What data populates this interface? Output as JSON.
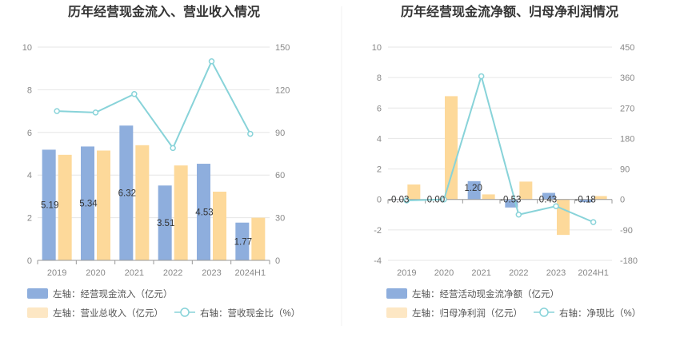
{
  "chart_data": [
    {
      "type": "bar",
      "title": "历年经营现金流入、营业收入情况",
      "categories": [
        "2019",
        "2020",
        "2021",
        "2022",
        "2023",
        "2024H1"
      ],
      "left_axis": {
        "ylim": [
          0,
          10
        ],
        "ticks": [
          "0",
          "2",
          "4",
          "6",
          "8",
          "10"
        ]
      },
      "right_axis": {
        "ylim": [
          0,
          150
        ],
        "ticks": [
          "0",
          "30",
          "60",
          "90",
          "120",
          "150"
        ]
      },
      "series": [
        {
          "name": "左轴：经营现金流入（亿元）",
          "axis": "left",
          "kind": "bar",
          "color": "#8eaedd",
          "values": [
            5.19,
            5.34,
            6.32,
            3.51,
            4.53,
            1.77
          ],
          "labels": [
            "5.19",
            "5.34",
            "6.32",
            "3.51",
            "4.53",
            "1.77"
          ]
        },
        {
          "name": "左轴：营业总收入（亿元）",
          "axis": "left",
          "kind": "bar",
          "color": "#fdd99a",
          "values": [
            4.95,
            5.15,
            5.4,
            4.45,
            3.22,
            2.0
          ]
        },
        {
          "name": "右轴：营收现金比（%）",
          "axis": "right",
          "kind": "line",
          "color": "#88d3d9",
          "values": [
            105,
            104,
            117,
            79,
            140,
            89
          ]
        }
      ]
    },
    {
      "type": "bar",
      "title": "历年经营现金流净额、归母净利润情况",
      "categories": [
        "2019",
        "2020",
        "2021",
        "2022",
        "2023",
        "2024H1"
      ],
      "left_axis": {
        "ylim": [
          -4,
          10
        ],
        "ticks": [
          "-4",
          "-2",
          "0",
          "2",
          "4",
          "6",
          "8",
          "10"
        ]
      },
      "right_axis": {
        "ylim": [
          -180,
          450
        ],
        "ticks": [
          "-180",
          "-90",
          "0",
          "90",
          "180",
          "270",
          "360",
          "450"
        ]
      },
      "series": [
        {
          "name": "左轴：经营活动现金流净额（亿元）",
          "axis": "left",
          "kind": "bar",
          "color": "#8eaedd",
          "values": [
            -0.03,
            0.0,
            1.2,
            -0.53,
            0.43,
            -0.18
          ],
          "labels": [
            "-0.03",
            "0.00",
            "1.20",
            "-0.53",
            "0.43",
            "-0.18"
          ]
        },
        {
          "name": "左轴：归母净利润（亿元）",
          "axis": "left",
          "kind": "bar",
          "color": "#fdd99a",
          "values": [
            0.98,
            6.78,
            0.33,
            1.17,
            -2.33,
            0.22
          ]
        },
        {
          "name": "右轴：净现比（%）",
          "axis": "right",
          "kind": "line",
          "color": "#88d3d9",
          "values": [
            -3,
            0,
            364,
            -45,
            -20,
            -67
          ]
        }
      ]
    }
  ]
}
